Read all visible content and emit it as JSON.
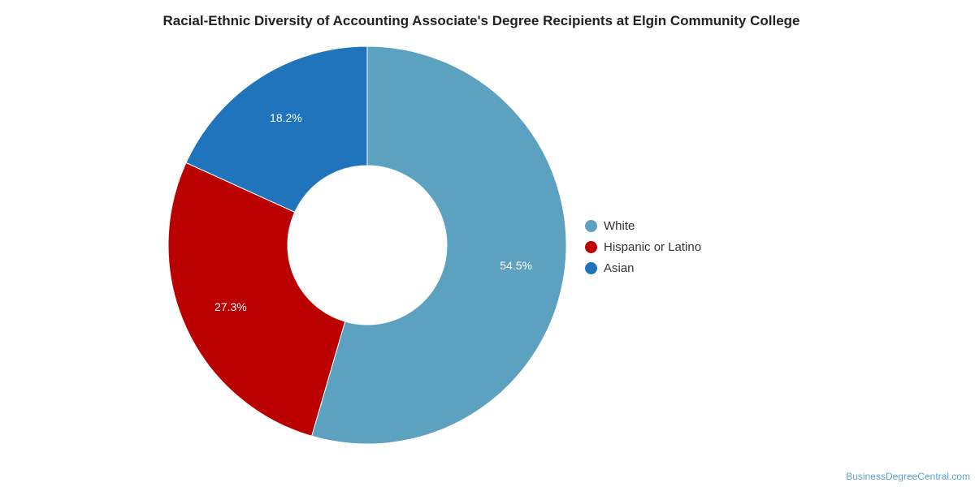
{
  "chart_data": {
    "type": "pie",
    "title": "Racial-Ethnic Diversity of Accounting Associate's Degree Recipients at Elgin Community College",
    "categories": [
      "White",
      "Hispanic or Latino",
      "Asian"
    ],
    "values": [
      54.5,
      27.3,
      18.2
    ],
    "labels": [
      "54.5%",
      "27.3%",
      "18.2%"
    ],
    "colors": [
      "#5ca1c0",
      "#bb0000",
      "#1f74bb"
    ],
    "donut": true,
    "legend_position": "right"
  },
  "credit": "BusinessDegreeCentral.com"
}
